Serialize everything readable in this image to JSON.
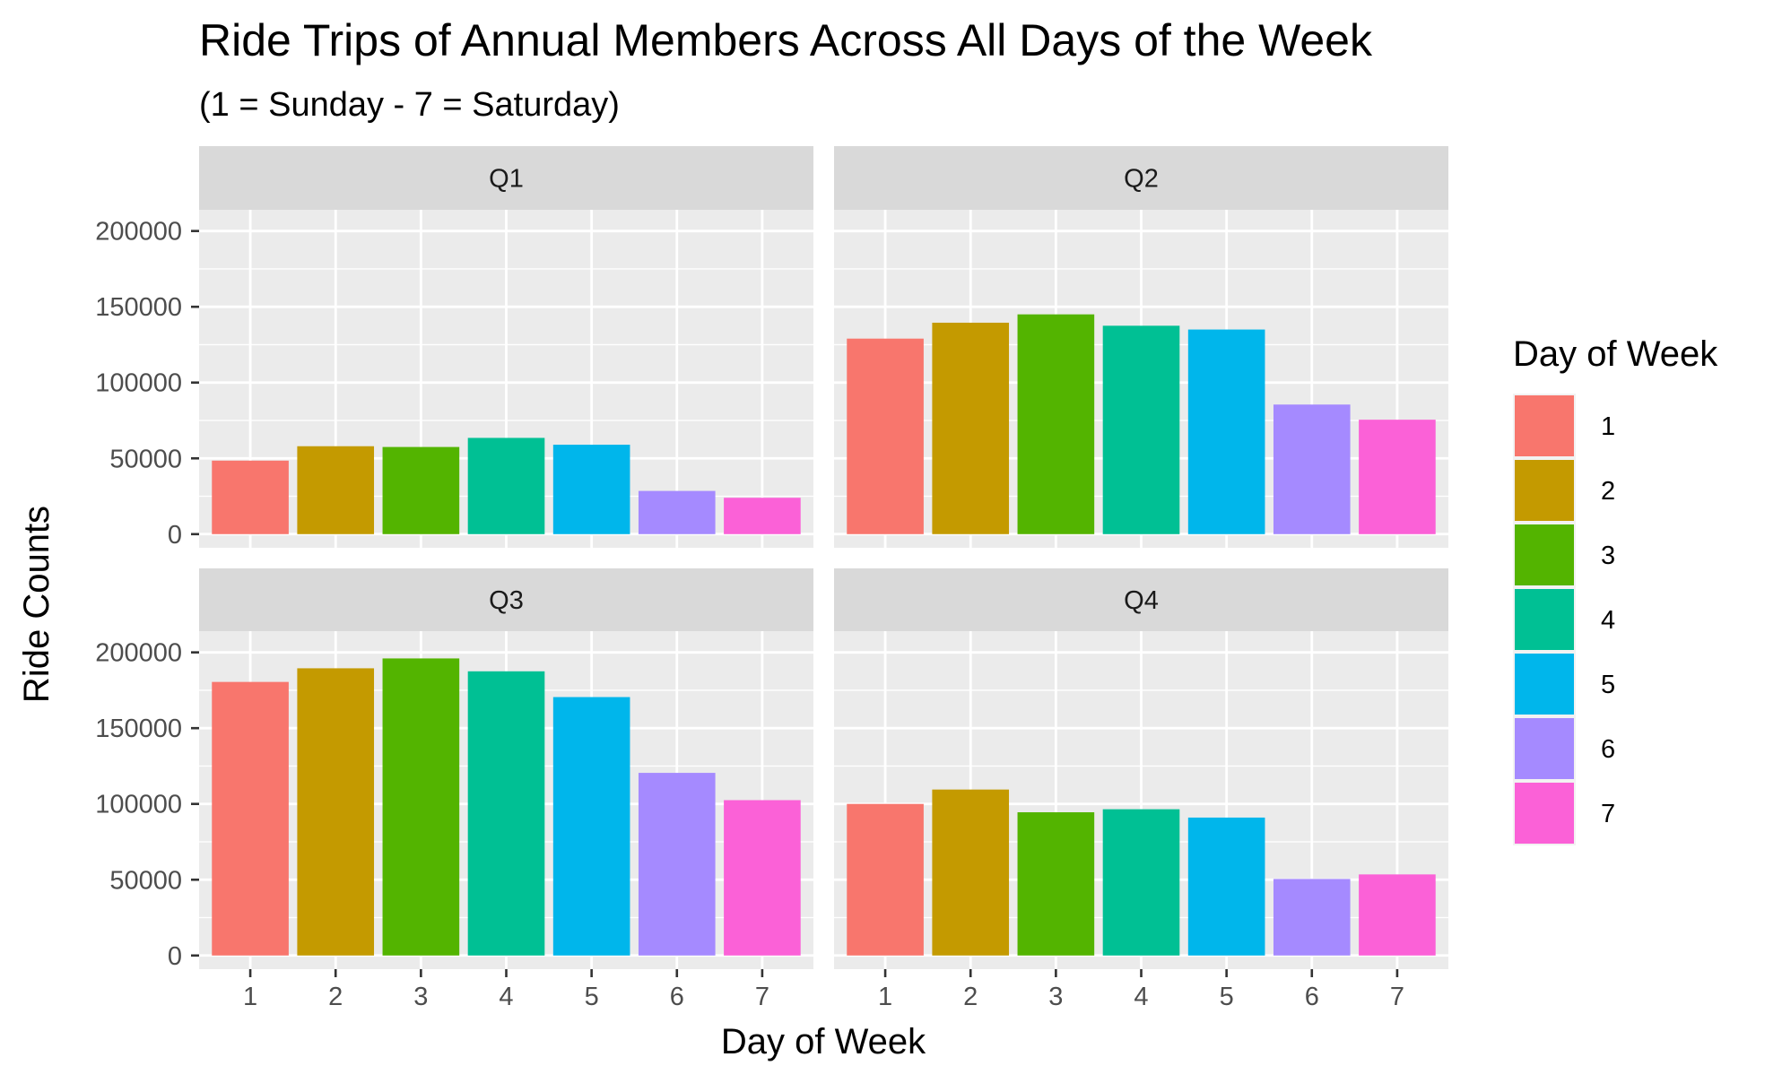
{
  "chart_data": {
    "type": "bar",
    "title": "Ride Trips of Annual Members Across All Days of the Week",
    "subtitle": "(1 = Sunday - 7 = Saturday)",
    "xlabel": "Day of Week",
    "ylabel": "Ride Counts",
    "categories": [
      "1",
      "2",
      "3",
      "4",
      "5",
      "6",
      "7"
    ],
    "ylim": [
      0,
      210000
    ],
    "yticks": [
      0,
      50000,
      100000,
      150000,
      200000
    ],
    "ytick_labels": [
      "0",
      "50000",
      "100000",
      "150000",
      "200000"
    ],
    "grid": true,
    "legend": {
      "title": "Day of Week",
      "placement": "right",
      "entries": [
        "1",
        "2",
        "3",
        "4",
        "5",
        "6",
        "7"
      ]
    },
    "colors": [
      "#F8766D",
      "#C49A00",
      "#53B400",
      "#00C094",
      "#00B6EB",
      "#A58AFF",
      "#FB61D7"
    ],
    "panels": [
      {
        "label": "Q1",
        "values": [
          48500,
          58000,
          57500,
          63500,
          59000,
          28500,
          24000
        ]
      },
      {
        "label": "Q2",
        "values": [
          129000,
          139500,
          145000,
          137500,
          135000,
          85500,
          75500
        ]
      },
      {
        "label": "Q3",
        "values": [
          180500,
          189500,
          196000,
          187500,
          170500,
          120500,
          102500
        ]
      },
      {
        "label": "Q4",
        "values": [
          100000,
          109500,
          94500,
          96500,
          91000,
          50500,
          53500
        ]
      }
    ]
  }
}
